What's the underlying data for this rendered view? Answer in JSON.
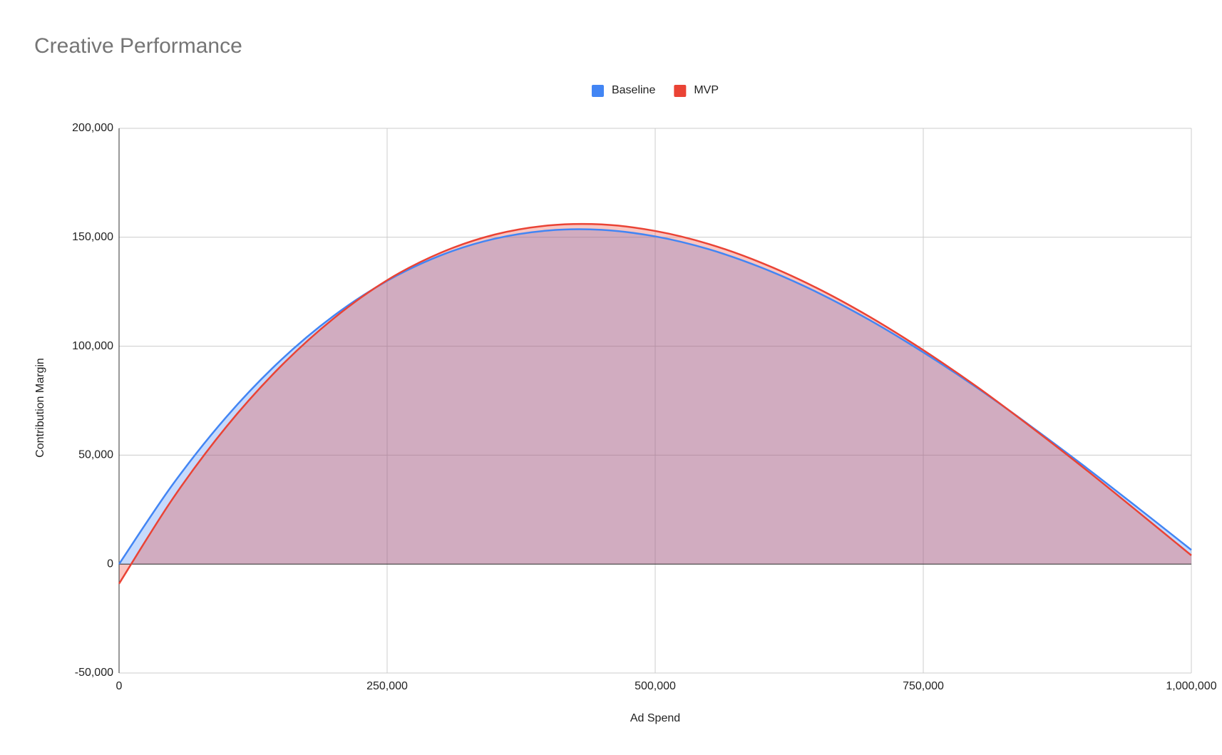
{
  "chart_data": {
    "type": "area",
    "title": "Creative Performance",
    "x_label": "Ad Spend",
    "y_label": "Contribution Margin",
    "x": [
      0,
      50000,
      100000,
      150000,
      200000,
      250000,
      300000,
      350000,
      400000,
      450000,
      500000,
      550000,
      600000,
      650000,
      700000,
      750000,
      800000,
      850000,
      900000,
      950000,
      1000000
    ],
    "series": [
      {
        "name": "Baseline",
        "color": "#4285f4",
        "values": [
          0,
          36500,
          67500,
          93200,
          113900,
          130000,
          141700,
          149300,
          153100,
          153400,
          150400,
          144500,
          135900,
          125000,
          112000,
          97200,
          81000,
          63400,
          45000,
          25900,
          6500
        ]
      },
      {
        "name": "MVP",
        "color": "#ea4335",
        "values": [
          -9000,
          30000,
          63000,
          90400,
          112700,
          130300,
          142900,
          151200,
          155400,
          155900,
          152900,
          146900,
          138100,
          126900,
          113500,
          98200,
          81400,
          63100,
          44000,
          24100,
          4000
        ]
      }
    ],
    "xlim": [
      0,
      1000000
    ],
    "xticks": [
      0,
      {
        "value": 250000,
        "label": "250,000"
      },
      {
        "value": 500000,
        "label": "500,000"
      },
      {
        "value": 750000,
        "label": "750,000"
      },
      {
        "value": 1000000,
        "label": "1,000,000"
      }
    ],
    "ylim": [
      -50000,
      200000
    ],
    "yticks": [
      {
        "value": -50000,
        "label": "-50,000"
      },
      0,
      {
        "value": 50000,
        "label": "50,000"
      },
      {
        "value": 100000,
        "label": "100,000"
      },
      {
        "value": 150000,
        "label": "150,000"
      },
      {
        "value": 200000,
        "label": "200,000"
      }
    ],
    "grid": true,
    "legend": "top"
  }
}
